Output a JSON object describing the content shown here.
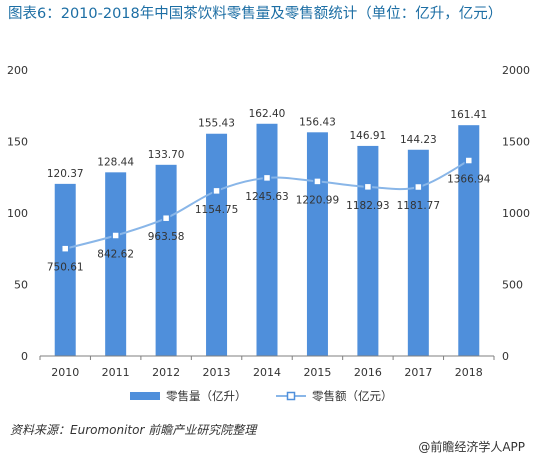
{
  "title": "图表6：2010-2018年中国茶饮料零售量及零售额统计（单位：亿升，亿元）",
  "source": "资料来源：Euromonitor 前瞻产业研究院整理",
  "credit": "@前瞻经济学人APP",
  "colors": {
    "bar": "#4f8fdb",
    "line": "#89b6e8",
    "marker_fill": "#ffffff",
    "marker_stroke": "#4f8fdb",
    "title": "#1c6ea4",
    "axis_text": "#333333"
  },
  "chart_data": {
    "type": "bar",
    "categories": [
      "2010",
      "2011",
      "2012",
      "2013",
      "2014",
      "2015",
      "2016",
      "2017",
      "2018"
    ],
    "series": [
      {
        "name": "零售量（亿升）",
        "type": "bar",
        "axis": "left",
        "values": [
          120.37,
          128.44,
          133.7,
          155.43,
          162.4,
          156.43,
          146.91,
          144.23,
          161.41
        ],
        "labels": [
          "120.37",
          "128.44",
          "133.70",
          "155.43",
          "162.40",
          "156.43",
          "146.91",
          "144.23",
          "161.41"
        ]
      },
      {
        "name": "零售额（亿元）",
        "type": "line",
        "axis": "right",
        "values": [
          750.61,
          842.62,
          963.58,
          1154.75,
          1245.63,
          1220.99,
          1182.93,
          1181.77,
          1366.94
        ],
        "labels": [
          "750.61",
          "842.62",
          "963.58",
          "1154.75",
          "1245.63",
          "1220.99",
          "1182.93",
          "1181.77",
          "1366.94"
        ]
      }
    ],
    "ylim_left": [
      0,
      200
    ],
    "ylim_right": [
      0,
      2000
    ],
    "yticks_left": [
      "0",
      "50",
      "100",
      "150",
      "200"
    ],
    "yticks_right": [
      "0",
      "500",
      "1000",
      "1500",
      "2000"
    ],
    "legend": [
      "零售量（亿升）",
      "零售额（亿元）"
    ],
    "legend_position": "bottom",
    "grid": false
  }
}
